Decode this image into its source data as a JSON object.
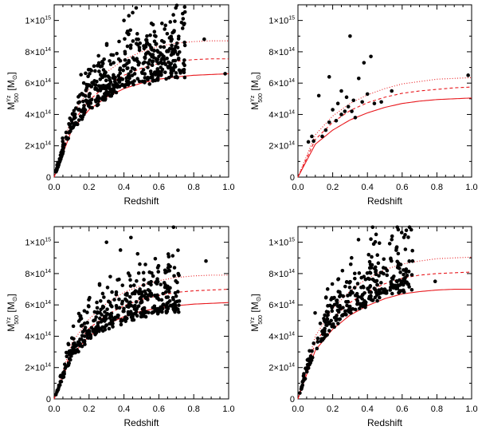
{
  "chart_data": [
    {
      "type": "scatter",
      "panel": "top-left",
      "xlabel": "Redshift",
      "ylabel": {
        "main": "M",
        "sup": "Yz",
        "sub": "500",
        "unit": "[M",
        "unit_sub": "⊙",
        "unit_close": "]"
      },
      "xlim": [
        0,
        1.0
      ],
      "ylim": [
        0,
        1100000000000000.0
      ],
      "xticks": [
        0.0,
        0.2,
        0.4,
        0.6,
        0.8,
        1.0
      ],
      "xtick_labels": [
        "0.0",
        "0.2",
        "0.4",
        "0.6",
        "0.8",
        "1.0"
      ],
      "yticks": [
        0,
        200000000000000.0,
        400000000000000.0,
        600000000000000.0,
        800000000000000.0,
        1000000000000000.0
      ],
      "ytick_labels": [
        {
          "base": "0",
          "exp": ""
        },
        {
          "base": "2×10",
          "exp": "14"
        },
        {
          "base": "4×10",
          "exp": "14"
        },
        {
          "base": "6×10",
          "exp": "14"
        },
        {
          "base": "8×10",
          "exp": "14"
        },
        {
          "base": "1×10",
          "exp": "15"
        }
      ],
      "points_seed": 11,
      "points_n": 520,
      "points_scale": 1.0,
      "points_zmax": 0.75,
      "extra_points": [
        [
          0.86,
          880000000000000.0
        ],
        [
          0.98,
          660000000000000.0
        ],
        [
          0.45,
          1050000000000000.0
        ],
        [
          0.47,
          1080000000000000.0
        ],
        [
          0.4,
          1000000000000000.0
        ]
      ],
      "curves": [
        {
          "name": "solid",
          "style": "solid",
          "z": [
            0.0,
            0.1,
            0.2,
            0.3,
            0.4,
            0.5,
            0.6,
            0.7,
            0.8,
            0.9,
            1.0
          ],
          "mass": [
            0.0,
            300000000000000.0,
            430000000000000.0,
            510000000000000.0,
            565000000000000.0,
            600000000000000.0,
            625000000000000.0,
            640000000000000.0,
            650000000000000.0,
            655000000000000.0,
            660000000000000.0
          ]
        },
        {
          "name": "dashed",
          "style": "dashed",
          "z": [
            0.0,
            0.1,
            0.2,
            0.3,
            0.4,
            0.5,
            0.6,
            0.7,
            0.8,
            0.9,
            1.0
          ],
          "mass": [
            0.0,
            340000000000000.0,
            490000000000000.0,
            585000000000000.0,
            650000000000000.0,
            695000000000000.0,
            725000000000000.0,
            740000000000000.0,
            750000000000000.0,
            755000000000000.0,
            755000000000000.0
          ]
        },
        {
          "name": "dotted",
          "style": "dotted",
          "z": [
            0.0,
            0.1,
            0.2,
            0.3,
            0.4,
            0.5,
            0.6,
            0.7,
            0.8,
            0.9,
            1.0
          ],
          "mass": [
            0.0,
            390000000000000.0,
            560000000000000.0,
            670000000000000.0,
            750000000000000.0,
            800000000000000.0,
            835000000000000.0,
            855000000000000.0,
            865000000000000.0,
            870000000000000.0,
            870000000000000.0
          ]
        }
      ]
    },
    {
      "type": "scatter",
      "panel": "top-right",
      "xlabel": "Redshift",
      "ylabel": {
        "main": "M",
        "sup": "Yz",
        "sub": "500",
        "unit": "[M",
        "unit_sub": "⊙",
        "unit_close": "]"
      },
      "xlim": [
        0,
        1.0
      ],
      "ylim": [
        0,
        1100000000000000.0
      ],
      "xticks": [
        0.0,
        0.2,
        0.4,
        0.6,
        0.8,
        1.0
      ],
      "xtick_labels": [
        "0.0",
        "0.2",
        "0.4",
        "0.6",
        "0.8",
        "1.0"
      ],
      "yticks": [
        0,
        200000000000000.0,
        400000000000000.0,
        600000000000000.0,
        800000000000000.0,
        1000000000000000.0
      ],
      "ytick_labels": [
        {
          "base": "0",
          "exp": ""
        },
        {
          "base": "2×10",
          "exp": "14"
        },
        {
          "base": "4×10",
          "exp": "14"
        },
        {
          "base": "6×10",
          "exp": "14"
        },
        {
          "base": "8×10",
          "exp": "14"
        },
        {
          "base": "1×10",
          "exp": "15"
        }
      ],
      "points_seed": 0,
      "points_n": 0,
      "points_scale": 1.0,
      "points_zmax": 0.6,
      "extra_points": [
        [
          0.06,
          225000000000000.0
        ],
        [
          0.08,
          260000000000000.0
        ],
        [
          0.09,
          230000000000000.0
        ],
        [
          0.12,
          520000000000000.0
        ],
        [
          0.14,
          260000000000000.0
        ],
        [
          0.16,
          300000000000000.0
        ],
        [
          0.18,
          350000000000000.0
        ],
        [
          0.18,
          640000000000000.0
        ],
        [
          0.2,
          430000000000000.0
        ],
        [
          0.22,
          360000000000000.0
        ],
        [
          0.23,
          470000000000000.0
        ],
        [
          0.25,
          400000000000000.0
        ],
        [
          0.25,
          550000000000000.0
        ],
        [
          0.27,
          420000000000000.0
        ],
        [
          0.28,
          510000000000000.0
        ],
        [
          0.29,
          450000000000000.0
        ],
        [
          0.3,
          900000000000000.0
        ],
        [
          0.31,
          420000000000000.0
        ],
        [
          0.32,
          490000000000000.0
        ],
        [
          0.33,
          380000000000000.0
        ],
        [
          0.35,
          630000000000000.0
        ],
        [
          0.37,
          480000000000000.0
        ],
        [
          0.38,
          730000000000000.0
        ],
        [
          0.4,
          530000000000000.0
        ],
        [
          0.42,
          770000000000000.0
        ],
        [
          0.44,
          470000000000000.0
        ],
        [
          0.48,
          480000000000000.0
        ],
        [
          0.54,
          550000000000000.0
        ],
        [
          0.98,
          650000000000000.0
        ]
      ],
      "curves": [
        {
          "name": "solid",
          "style": "solid",
          "z": [
            0.0,
            0.1,
            0.2,
            0.3,
            0.4,
            0.5,
            0.6,
            0.7,
            0.8,
            0.9,
            1.0
          ],
          "mass": [
            0.0,
            210000000000000.0,
            300000000000000.0,
            365000000000000.0,
            410000000000000.0,
            445000000000000.0,
            470000000000000.0,
            485000000000000.0,
            495000000000000.0,
            500000000000000.0,
            505000000000000.0
          ]
        },
        {
          "name": "dashed",
          "style": "dashed",
          "z": [
            0.0,
            0.1,
            0.2,
            0.3,
            0.4,
            0.5,
            0.6,
            0.7,
            0.8,
            0.9,
            1.0
          ],
          "mass": [
            0.0,
            240000000000000.0,
            350000000000000.0,
            425000000000000.0,
            475000000000000.0,
            510000000000000.0,
            535000000000000.0,
            550000000000000.0,
            560000000000000.0,
            570000000000000.0,
            575000000000000.0
          ]
        },
        {
          "name": "dotted",
          "style": "dotted",
          "z": [
            0.0,
            0.1,
            0.2,
            0.3,
            0.4,
            0.5,
            0.6,
            0.7,
            0.8,
            0.9,
            1.0
          ],
          "mass": [
            0.0,
            270000000000000.0,
            390000000000000.0,
            470000000000000.0,
            525000000000000.0,
            565000000000000.0,
            595000000000000.0,
            610000000000000.0,
            625000000000000.0,
            630000000000000.0,
            635000000000000.0
          ]
        }
      ]
    },
    {
      "type": "scatter",
      "panel": "bottom-left",
      "xlabel": "Redshift",
      "ylabel": {
        "main": "M",
        "sup": "Yz",
        "sub": "500",
        "unit": "[M",
        "unit_sub": "⊙",
        "unit_close": "]"
      },
      "xlim": [
        0,
        1.0
      ],
      "ylim": [
        0,
        1100000000000000.0
      ],
      "xticks": [
        0.0,
        0.2,
        0.4,
        0.6,
        0.8,
        1.0
      ],
      "xtick_labels": [
        "0.0",
        "0.2",
        "0.4",
        "0.6",
        "0.8",
        "1.0"
      ],
      "yticks": [
        0,
        200000000000000.0,
        400000000000000.0,
        600000000000000.0,
        800000000000000.0,
        1000000000000000.0
      ],
      "ytick_labels": [
        {
          "base": "0",
          "exp": ""
        },
        {
          "base": "2×10",
          "exp": "14"
        },
        {
          "base": "4×10",
          "exp": "14"
        },
        {
          "base": "6×10",
          "exp": "14"
        },
        {
          "base": "8×10",
          "exp": "14"
        },
        {
          "base": "1×10",
          "exp": "15"
        }
      ],
      "points_seed": 23,
      "points_n": 430,
      "points_scale": 0.95,
      "points_zmax": 0.72,
      "extra_points": [
        [
          0.87,
          880000000000000.0
        ],
        [
          0.44,
          1030000000000000.0
        ],
        [
          0.3,
          1000000000000000.0
        ],
        [
          0.38,
          950000000000000.0
        ]
      ],
      "curves": [
        {
          "name": "solid",
          "style": "solid",
          "z": [
            0.0,
            0.1,
            0.2,
            0.3,
            0.4,
            0.5,
            0.6,
            0.7,
            0.8,
            0.9,
            1.0
          ],
          "mass": [
            0.0,
            280000000000000.0,
            400000000000000.0,
            475000000000000.0,
            525000000000000.0,
            560000000000000.0,
            580000000000000.0,
            595000000000000.0,
            605000000000000.0,
            610000000000000.0,
            615000000000000.0
          ]
        },
        {
          "name": "dashed",
          "style": "dashed",
          "z": [
            0.0,
            0.1,
            0.2,
            0.3,
            0.4,
            0.5,
            0.6,
            0.7,
            0.8,
            0.9,
            1.0
          ],
          "mass": [
            0.0,
            315000000000000.0,
            450000000000000.0,
            535000000000000.0,
            595000000000000.0,
            635000000000000.0,
            660000000000000.0,
            680000000000000.0,
            690000000000000.0,
            695000000000000.0,
            700000000000000.0
          ]
        },
        {
          "name": "dotted",
          "style": "dotted",
          "z": [
            0.0,
            0.1,
            0.2,
            0.3,
            0.4,
            0.5,
            0.6,
            0.7,
            0.8,
            0.9,
            1.0
          ],
          "mass": [
            0.0,
            355000000000000.0,
            510000000000000.0,
            610000000000000.0,
            680000000000000.0,
            725000000000000.0,
            755000000000000.0,
            775000000000000.0,
            785000000000000.0,
            790000000000000.0,
            790000000000000.0
          ]
        }
      ]
    },
    {
      "type": "scatter",
      "panel": "bottom-right",
      "xlabel": "Redshift",
      "ylabel": {
        "main": "M",
        "sup": "Yz",
        "sub": "500",
        "unit": "[M",
        "unit_sub": "⊙",
        "unit_close": "]"
      },
      "xlim": [
        0,
        1.0
      ],
      "ylim": [
        0,
        1100000000000000.0
      ],
      "xticks": [
        0.0,
        0.2,
        0.4,
        0.6,
        0.8,
        1.0
      ],
      "xtick_labels": [
        "0.0",
        "0.2",
        "0.4",
        "0.6",
        "0.8",
        "1.0"
      ],
      "yticks": [
        0,
        200000000000000.0,
        400000000000000.0,
        600000000000000.0,
        800000000000000.0,
        1000000000000000.0
      ],
      "ytick_labels": [
        {
          "base": "0",
          "exp": ""
        },
        {
          "base": "2×10",
          "exp": "14"
        },
        {
          "base": "4×10",
          "exp": "14"
        },
        {
          "base": "6×10",
          "exp": "14"
        },
        {
          "base": "8×10",
          "exp": "14"
        },
        {
          "base": "1×10",
          "exp": "15"
        }
      ],
      "points_seed": 37,
      "points_n": 330,
      "points_scale": 1.02,
      "points_zmax": 0.66,
      "extra_points": [
        [
          0.45,
          1050000000000000.0
        ],
        [
          0.42,
          1020000000000000.0
        ],
        [
          0.79,
          750000000000000.0
        ],
        [
          0.66,
          880000000000000.0
        ]
      ],
      "curves": [
        {
          "name": "solid",
          "style": "solid",
          "z": [
            0.0,
            0.1,
            0.2,
            0.3,
            0.4,
            0.5,
            0.6,
            0.7,
            0.8,
            0.9,
            1.0
          ],
          "mass": [
            0.0,
            310000000000000.0,
            445000000000000.0,
            535000000000000.0,
            595000000000000.0,
            640000000000000.0,
            670000000000000.0,
            685000000000000.0,
            695000000000000.0,
            700000000000000.0,
            700000000000000.0
          ]
        },
        {
          "name": "dashed",
          "style": "dashed",
          "z": [
            0.0,
            0.1,
            0.2,
            0.3,
            0.4,
            0.5,
            0.6,
            0.7,
            0.8,
            0.9,
            1.0
          ],
          "mass": [
            0.0,
            360000000000000.0,
            515000000000000.0,
            615000000000000.0,
            685000000000000.0,
            735000000000000.0,
            770000000000000.0,
            790000000000000.0,
            800000000000000.0,
            805000000000000.0,
            810000000000000.0
          ]
        },
        {
          "name": "dotted",
          "style": "dotted",
          "z": [
            0.0,
            0.1,
            0.2,
            0.3,
            0.4,
            0.5,
            0.6,
            0.7,
            0.8,
            0.9,
            1.0
          ],
          "mass": [
            0.0,
            400000000000000.0,
            575000000000000.0,
            690000000000000.0,
            770000000000000.0,
            825000000000000.0,
            860000000000000.0,
            880000000000000.0,
            895000000000000.0,
            900000000000000.0,
            905000000000000.0
          ]
        }
      ]
    }
  ],
  "colors": {
    "points": "#000000",
    "curves": "#e8191e",
    "axes": "#000000"
  }
}
